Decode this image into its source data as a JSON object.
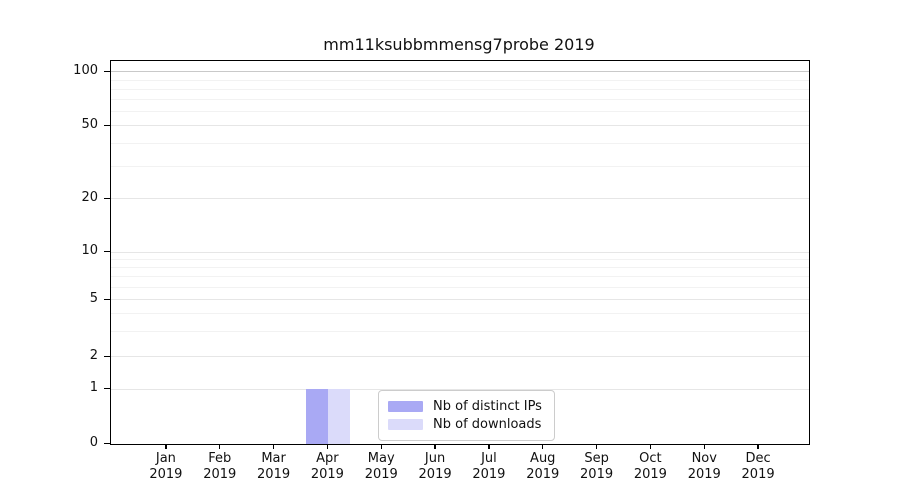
{
  "chart_data": {
    "type": "bar",
    "title": "mm11ksubbmmensg7probe 2019",
    "categories": [
      "Jan",
      "Feb",
      "Mar",
      "Apr",
      "May",
      "Jun",
      "Jul",
      "Aug",
      "Sep",
      "Oct",
      "Nov",
      "Dec"
    ],
    "year": "2019",
    "series": [
      {
        "name": "Nb of distinct IPs",
        "color": "#a9a9f4",
        "values": [
          0,
          0,
          0,
          1,
          0,
          0,
          0,
          0,
          0,
          0,
          0,
          0
        ]
      },
      {
        "name": "Nb of downloads",
        "color": "#dbdbfa",
        "values": [
          0,
          0,
          0,
          1,
          0,
          0,
          0,
          0,
          0,
          0,
          0,
          0
        ]
      }
    ],
    "xlabel": "",
    "ylabel": "",
    "yticks": [
      0,
      1,
      2,
      5,
      10,
      20,
      50,
      100
    ],
    "yticks_minor": [
      3,
      4,
      6,
      7,
      8,
      9,
      30,
      40,
      60,
      70,
      80,
      90
    ],
    "ylim": [
      0,
      115
    ],
    "yscale": "log-like (linear 0-1, log 1-2-5 steps above)",
    "grid": "horizontal",
    "legend_position": "lower center inside plot",
    "colors": {
      "grid_major_top": "#c9c9c9",
      "grid_major": "#e6e6e6",
      "grid_minor": "#f2f2f2",
      "spine": "#000000"
    }
  }
}
